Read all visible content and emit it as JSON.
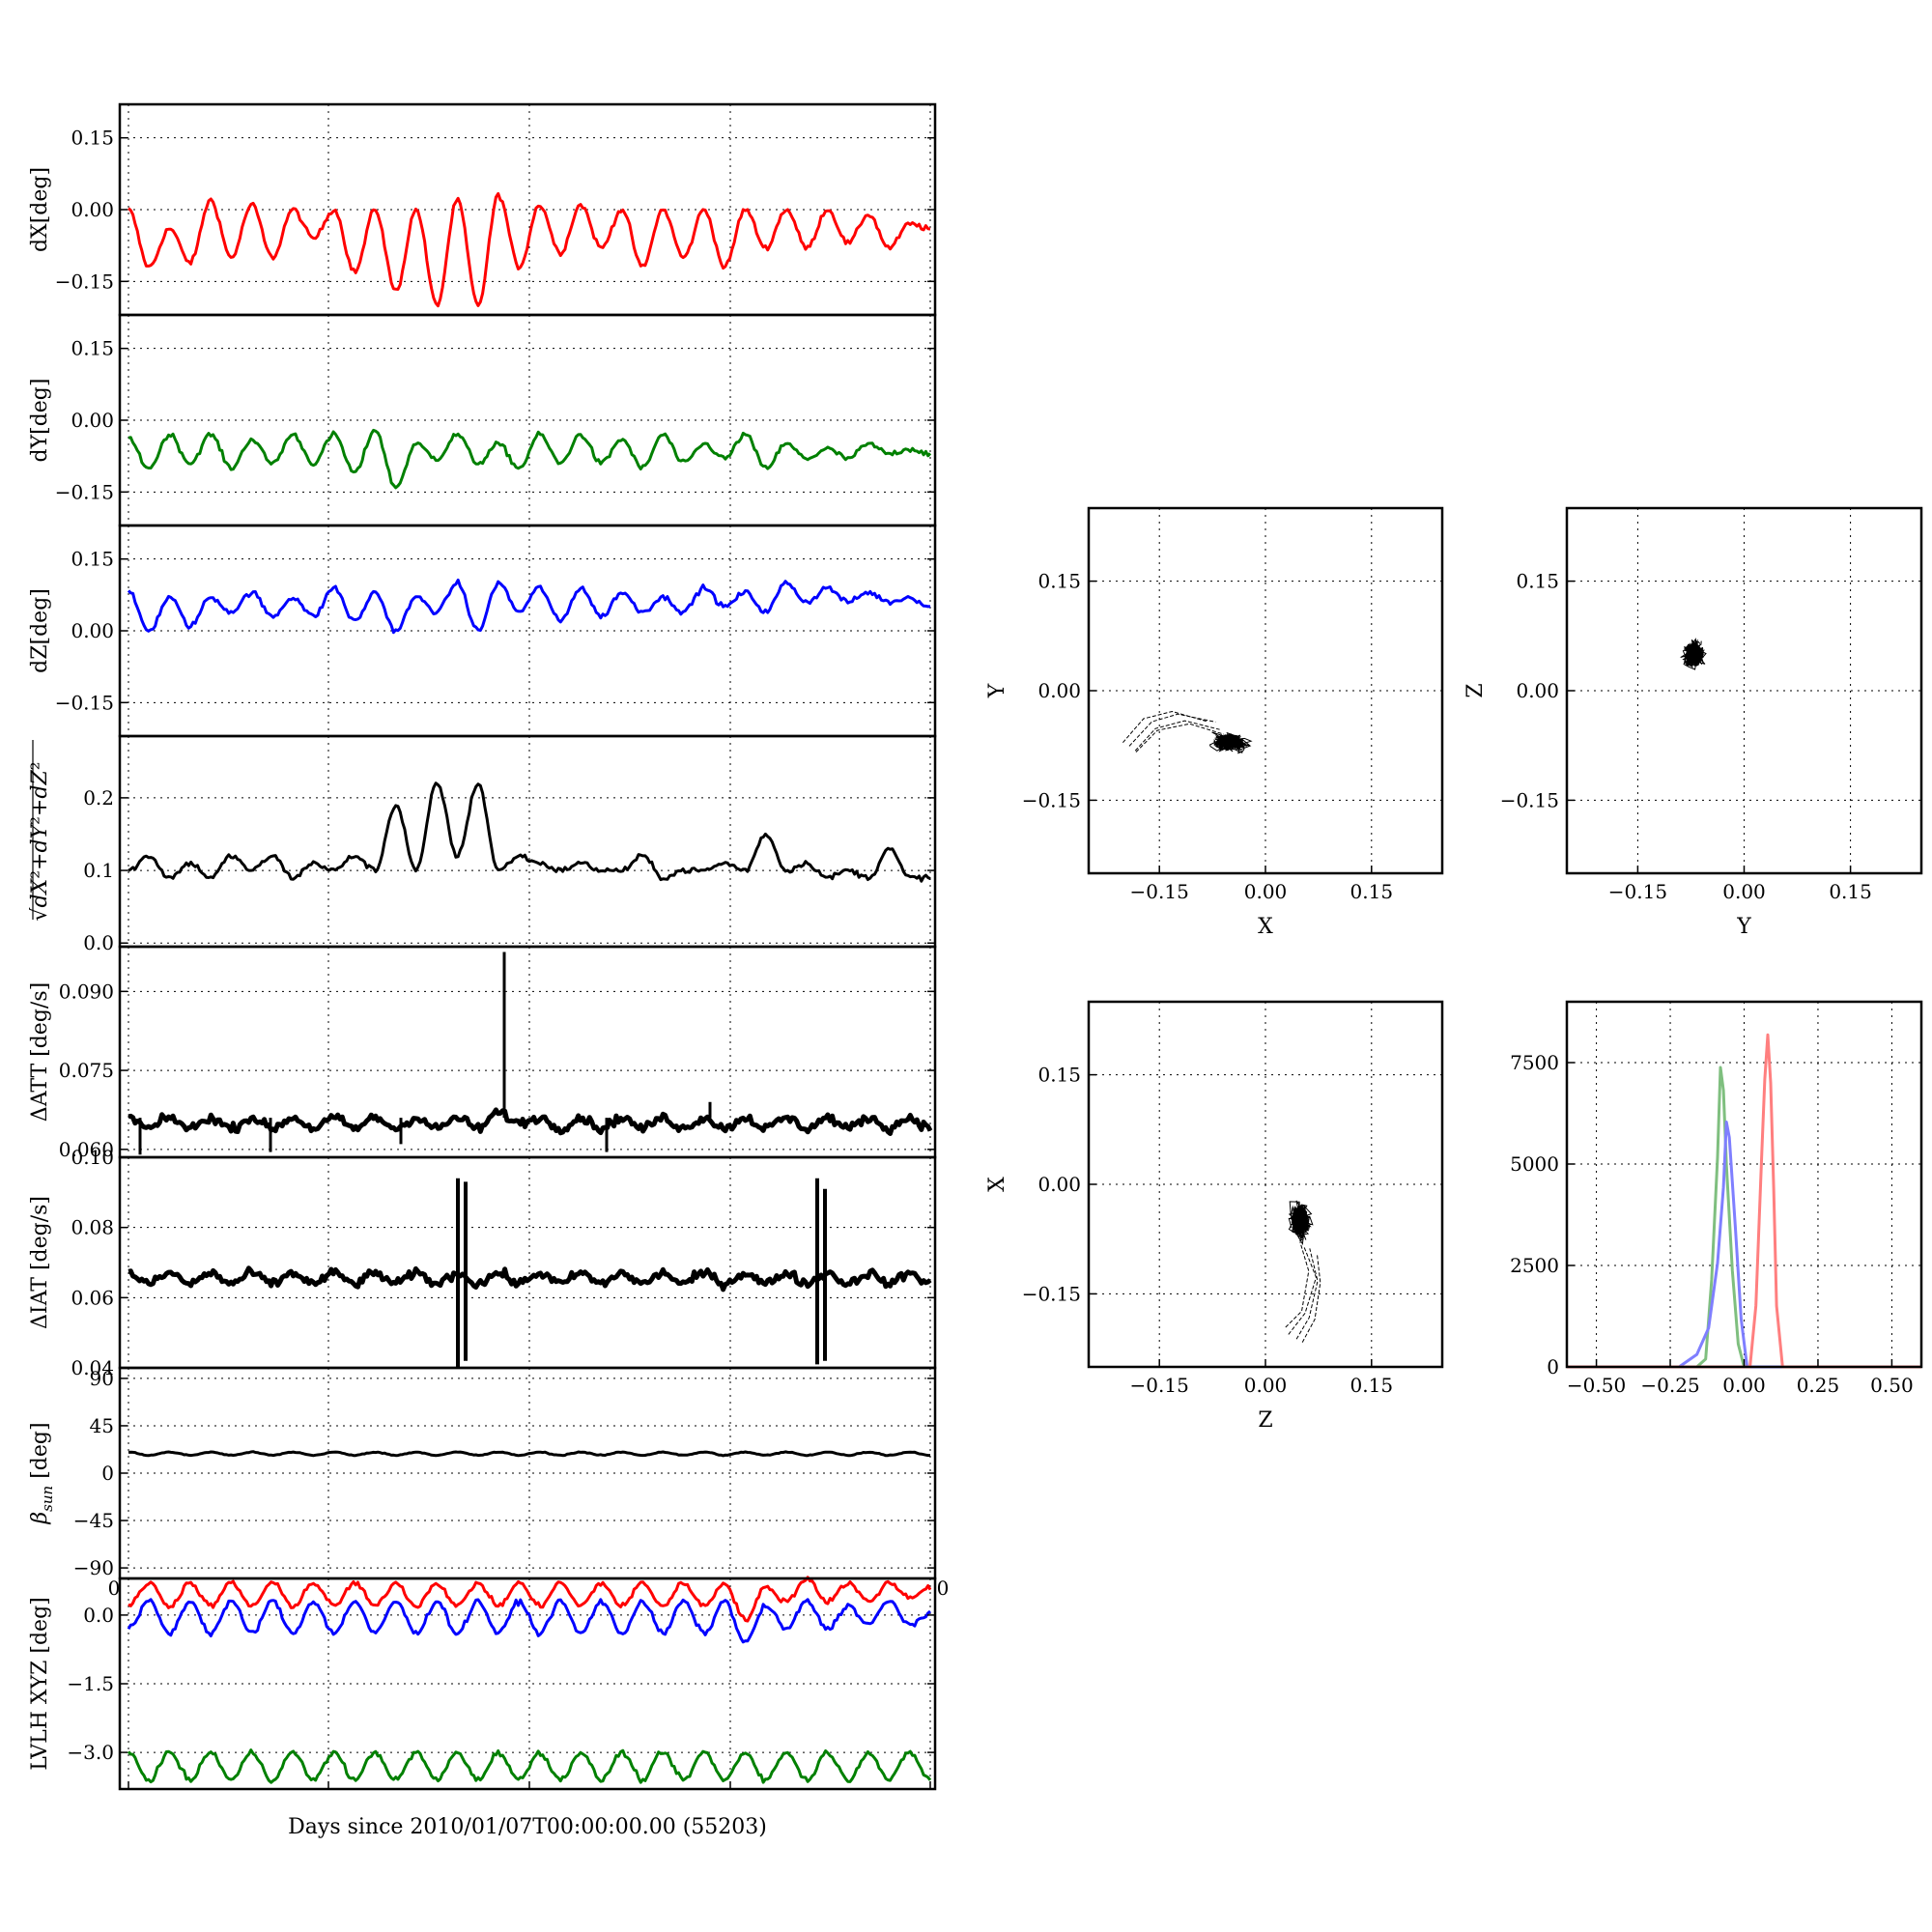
{
  "chart_data": [
    {
      "type": "line",
      "ylabel": "dX[deg]",
      "ylim": [
        -0.22,
        0.22
      ],
      "yticks": [
        "0.15",
        "0.00",
        "−0.15"
      ],
      "ytick_values": [
        0.15,
        0.0,
        -0.15
      ],
      "series": [
        {
          "color": "#ff0000",
          "values": [
            0.0,
            -0.12,
            -0.04,
            -0.11,
            0.02,
            -0.1,
            0.01,
            -0.1,
            0.0,
            -0.06,
            0.0,
            -0.13,
            0.0,
            -0.17,
            0.0,
            -0.2,
            0.02,
            -0.2,
            0.03,
            -0.12,
            0.01,
            -0.09,
            0.01,
            -0.08,
            0.0,
            -0.12,
            0.0,
            -0.1,
            0.0,
            -0.12,
            0.0,
            -0.08,
            0.0,
            -0.08,
            0.0,
            -0.07,
            -0.01,
            -0.08,
            -0.03,
            -0.04
          ]
        }
      ]
    },
    {
      "type": "line",
      "ylabel": "dY[deg]",
      "ylim": [
        -0.22,
        0.22
      ],
      "yticks": [
        "0.15",
        "0.00",
        "−0.15"
      ],
      "ytick_values": [
        0.15,
        0.0,
        -0.15
      ],
      "series": [
        {
          "color": "#008000",
          "values": [
            -0.04,
            -0.1,
            -0.03,
            -0.09,
            -0.03,
            -0.1,
            -0.04,
            -0.09,
            -0.03,
            -0.09,
            -0.03,
            -0.11,
            -0.02,
            -0.14,
            -0.05,
            -0.08,
            -0.03,
            -0.09,
            -0.05,
            -0.1,
            -0.03,
            -0.09,
            -0.03,
            -0.09,
            -0.04,
            -0.1,
            -0.03,
            -0.09,
            -0.05,
            -0.08,
            -0.03,
            -0.1,
            -0.05,
            -0.08,
            -0.06,
            -0.08,
            -0.05,
            -0.07,
            -0.06,
            -0.07
          ]
        }
      ]
    },
    {
      "type": "line",
      "ylabel": "dZ[deg]",
      "ylim": [
        -0.22,
        0.22
      ],
      "yticks": [
        "0.15",
        "0.00",
        "−0.15"
      ],
      "ytick_values": [
        0.15,
        0.0,
        -0.15
      ],
      "series": [
        {
          "color": "#0000ff",
          "values": [
            0.08,
            0.0,
            0.07,
            0.01,
            0.07,
            0.04,
            0.08,
            0.03,
            0.07,
            0.03,
            0.09,
            0.02,
            0.08,
            0.0,
            0.07,
            0.04,
            0.1,
            0.0,
            0.1,
            0.04,
            0.09,
            0.02,
            0.09,
            0.03,
            0.08,
            0.04,
            0.07,
            0.04,
            0.09,
            0.05,
            0.08,
            0.04,
            0.1,
            0.06,
            0.09,
            0.06,
            0.08,
            0.06,
            0.07,
            0.05
          ]
        }
      ]
    },
    {
      "type": "line",
      "ylabel": "√(dX²+dY²+dZ²)",
      "ylabel_html": "√<tspan font-style=\"italic\">dX</tspan>²+<tspan font-style=\"italic\">dY</tspan>²+<tspan font-style=\"italic\">dZ</tspan>²",
      "ylim": [
        -0.005,
        0.285
      ],
      "yticks": [
        "0.2",
        "0.1",
        "0.0"
      ],
      "ytick_values": [
        0.2,
        0.1,
        0.0
      ],
      "series": [
        {
          "color": "#000000",
          "values": [
            0.1,
            0.12,
            0.09,
            0.11,
            0.09,
            0.12,
            0.1,
            0.12,
            0.09,
            0.11,
            0.1,
            0.12,
            0.1,
            0.19,
            0.1,
            0.22,
            0.12,
            0.22,
            0.1,
            0.12,
            0.11,
            0.1,
            0.11,
            0.1,
            0.1,
            0.12,
            0.09,
            0.1,
            0.1,
            0.11,
            0.1,
            0.15,
            0.1,
            0.11,
            0.09,
            0.1,
            0.09,
            0.13,
            0.09,
            0.09
          ]
        }
      ]
    },
    {
      "type": "line",
      "ylabel": "ΔATT [deg/s]",
      "ylim": [
        0.0585,
        0.0985
      ],
      "yticks": [
        "0.090",
        "0.075",
        "0.060"
      ],
      "ytick_values": [
        0.09,
        0.075,
        0.06
      ],
      "series": [
        {
          "color": "#000000",
          "values": [
            0.066,
            0.064,
            0.066,
            0.064,
            0.066,
            0.064,
            0.066,
            0.064,
            0.066,
            0.064,
            0.066,
            0.064,
            0.066,
            0.064,
            0.066,
            0.064,
            0.066,
            0.064,
            0.067,
            0.065,
            0.066,
            0.064,
            0.066,
            0.064,
            0.066,
            0.064,
            0.066,
            0.064,
            0.066,
            0.064,
            0.066,
            0.064,
            0.066,
            0.064,
            0.066,
            0.064,
            0.066,
            0.064,
            0.066,
            0.064
          ]
        }
      ]
    },
    {
      "type": "line",
      "ylabel": "ΔIAT [deg/s]",
      "ylim": [
        0.04,
        0.1
      ],
      "yticks": [
        "0.10",
        "0.08",
        "0.06",
        "0.04"
      ],
      "ytick_values": [
        0.1,
        0.08,
        0.06,
        0.04
      ],
      "series": [
        {
          "color": "#000000",
          "values": [
            0.067,
            0.064,
            0.067,
            0.064,
            0.067,
            0.064,
            0.067,
            0.064,
            0.067,
            0.064,
            0.067,
            0.064,
            0.067,
            0.064,
            0.067,
            0.064,
            0.067,
            0.064,
            0.067,
            0.064,
            0.067,
            0.064,
            0.067,
            0.064,
            0.067,
            0.064,
            0.067,
            0.064,
            0.067,
            0.064,
            0.067,
            0.064,
            0.067,
            0.064,
            0.067,
            0.064,
            0.067,
            0.064,
            0.067,
            0.064
          ]
        }
      ]
    },
    {
      "type": "line",
      "ylabel": "βsun [deg]",
      "ylabel_html": "<tspan font-style=\"italic\">β</tspan><tspan font-style=\"italic\" font-size=\"15\" dy=\"6\">sun</tspan><tspan dy=\"-6\"> [deg]</tspan>",
      "ylim": [
        -100,
        100
      ],
      "yticks": [
        "90",
        "45",
        "0",
        "−45",
        "−90"
      ],
      "ytick_values": [
        90,
        45,
        0,
        -45,
        -90
      ],
      "series": [
        {
          "color": "#000000",
          "values": [
            20,
            17,
            20,
            17,
            20,
            17,
            20,
            17,
            20,
            17,
            20,
            17,
            20,
            17,
            20,
            17,
            20,
            17,
            20,
            17,
            20,
            17,
            20,
            17,
            20,
            17,
            20,
            17,
            20,
            17,
            20,
            17,
            20,
            17,
            20,
            17,
            20,
            17,
            20,
            17
          ]
        }
      ]
    },
    {
      "type": "line",
      "ylabel": "LVLH XYZ [deg]",
      "xlabel": "Days since 2010/01/07T00:00:00.00 (55203)",
      "ylim": [
        -3.8,
        0.8
      ],
      "yticks": [
        "0.0",
        "−1.5",
        "−3.0"
      ],
      "ytick_values": [
        0.0,
        -1.5,
        -3.0
      ],
      "x_edge_labels": [
        "0",
        "0"
      ],
      "series": [
        {
          "color": "#ff0000",
          "values": [
            0.2,
            0.7,
            0.2,
            0.7,
            0.2,
            0.7,
            0.2,
            0.7,
            0.2,
            0.7,
            0.2,
            0.7,
            0.2,
            0.7,
            0.2,
            0.7,
            0.2,
            0.7,
            0.2,
            0.7,
            0.2,
            0.7,
            0.2,
            0.7,
            0.2,
            0.7,
            0.2,
            0.7,
            0.2,
            0.7,
            -0.1,
            0.6,
            0.3,
            0.8,
            0.3,
            0.7,
            0.3,
            0.7,
            0.4,
            0.6
          ]
        },
        {
          "color": "#0000ff",
          "values": [
            -0.3,
            0.3,
            -0.4,
            0.3,
            -0.4,
            0.3,
            -0.4,
            0.3,
            -0.4,
            0.3,
            -0.4,
            0.3,
            -0.4,
            0.3,
            -0.4,
            0.3,
            -0.4,
            0.3,
            -0.4,
            0.3,
            -0.4,
            0.3,
            -0.4,
            0.3,
            -0.4,
            0.3,
            -0.4,
            0.3,
            -0.4,
            0.3,
            -0.6,
            0.2,
            -0.3,
            0.3,
            -0.3,
            0.2,
            -0.2,
            0.3,
            -0.2,
            0.0
          ]
        },
        {
          "color": "#008000",
          "values": [
            -3.0,
            -3.6,
            -3.0,
            -3.6,
            -3.0,
            -3.6,
            -3.0,
            -3.6,
            -3.0,
            -3.6,
            -3.0,
            -3.6,
            -3.0,
            -3.6,
            -3.0,
            -3.6,
            -3.0,
            -3.6,
            -3.0,
            -3.6,
            -3.0,
            -3.6,
            -3.0,
            -3.6,
            -3.0,
            -3.6,
            -3.0,
            -3.6,
            -3.0,
            -3.6,
            -3.0,
            -3.6,
            -3.0,
            -3.6,
            -3.0,
            -3.6,
            -3.0,
            -3.6,
            -3.0,
            -3.6
          ]
        }
      ]
    },
    {
      "type": "scatter",
      "xlabel": "X",
      "ylabel": "Y",
      "xlim": [
        -0.25,
        0.25
      ],
      "ylim": [
        -0.25,
        0.25
      ],
      "xticks": [
        "−0.15",
        "0.00",
        "0.15"
      ],
      "yticks": [
        "0.15",
        "0.00",
        "−0.15"
      ],
      "tick_values": [
        -0.15,
        0.0,
        0.15
      ],
      "cluster": {
        "center": [
          -0.05,
          -0.07
        ],
        "spread": [
          0.04,
          0.02
        ]
      },
      "trail": [
        [
          -0.2,
          -0.07
        ],
        [
          -0.17,
          -0.04
        ],
        [
          -0.13,
          -0.03
        ],
        [
          -0.08,
          -0.04
        ]
      ]
    },
    {
      "type": "scatter",
      "xlabel": "Y",
      "ylabel": "Z",
      "xlim": [
        -0.25,
        0.25
      ],
      "ylim": [
        -0.25,
        0.25
      ],
      "xticks": [
        "−0.15",
        "0.00",
        "0.15"
      ],
      "yticks": [
        "0.15",
        "0.00",
        "−0.15"
      ],
      "tick_values": [
        -0.15,
        0.0,
        0.15
      ],
      "cluster": {
        "center": [
          -0.07,
          0.05
        ],
        "spread": [
          0.025,
          0.03
        ]
      },
      "trail": []
    },
    {
      "type": "scatter",
      "xlabel": "Z",
      "ylabel": "X",
      "xlim": [
        -0.25,
        0.25
      ],
      "ylim": [
        -0.25,
        0.25
      ],
      "xticks": [
        "−0.15",
        "0.00",
        "0.15"
      ],
      "yticks": [
        "0.15",
        "0.00",
        "−0.15"
      ],
      "tick_values": [
        -0.15,
        0.0,
        0.15
      ],
      "cluster": {
        "center": [
          0.05,
          -0.05
        ],
        "spread": [
          0.025,
          0.04
        ]
      },
      "trail": [
        [
          0.03,
          -0.2
        ],
        [
          0.05,
          -0.17
        ],
        [
          0.06,
          -0.12
        ],
        [
          0.05,
          -0.08
        ]
      ]
    },
    {
      "type": "area",
      "xlim": [
        -0.6,
        0.6
      ],
      "ylim": [
        0,
        9000
      ],
      "xticks": [
        "−0.50",
        "−0.25",
        "0.00",
        "0.25",
        "0.50"
      ],
      "xtick_values": [
        -0.5,
        -0.25,
        0.0,
        0.25,
        0.5
      ],
      "yticks": [
        "7500",
        "5000",
        "2500",
        "0"
      ],
      "ytick_values": [
        7500,
        5000,
        2500,
        0
      ],
      "series": [
        {
          "color": "#7fbf7f",
          "x": [
            -0.6,
            -0.16,
            -0.13,
            -0.11,
            -0.09,
            -0.08,
            -0.07,
            -0.06,
            -0.04,
            -0.02,
            0.0,
            0.6
          ],
          "values": [
            0,
            0,
            300,
            2200,
            5200,
            7500,
            6800,
            5000,
            2500,
            600,
            0,
            0
          ]
        },
        {
          "color": "#7f7fff",
          "x": [
            -0.6,
            -0.22,
            -0.16,
            -0.12,
            -0.09,
            -0.07,
            -0.06,
            -0.05,
            -0.03,
            -0.01,
            0.01,
            0.6
          ],
          "values": [
            0,
            0,
            300,
            900,
            2500,
            4500,
            6100,
            5500,
            3500,
            1200,
            0,
            0
          ]
        },
        {
          "color": "#ff7f7f",
          "x": [
            -0.6,
            0.02,
            0.04,
            0.06,
            0.07,
            0.08,
            0.09,
            0.1,
            0.11,
            0.13,
            0.6
          ],
          "values": [
            0,
            0,
            1500,
            5200,
            7000,
            8100,
            7000,
            4500,
            1500,
            0,
            0
          ]
        }
      ]
    }
  ]
}
